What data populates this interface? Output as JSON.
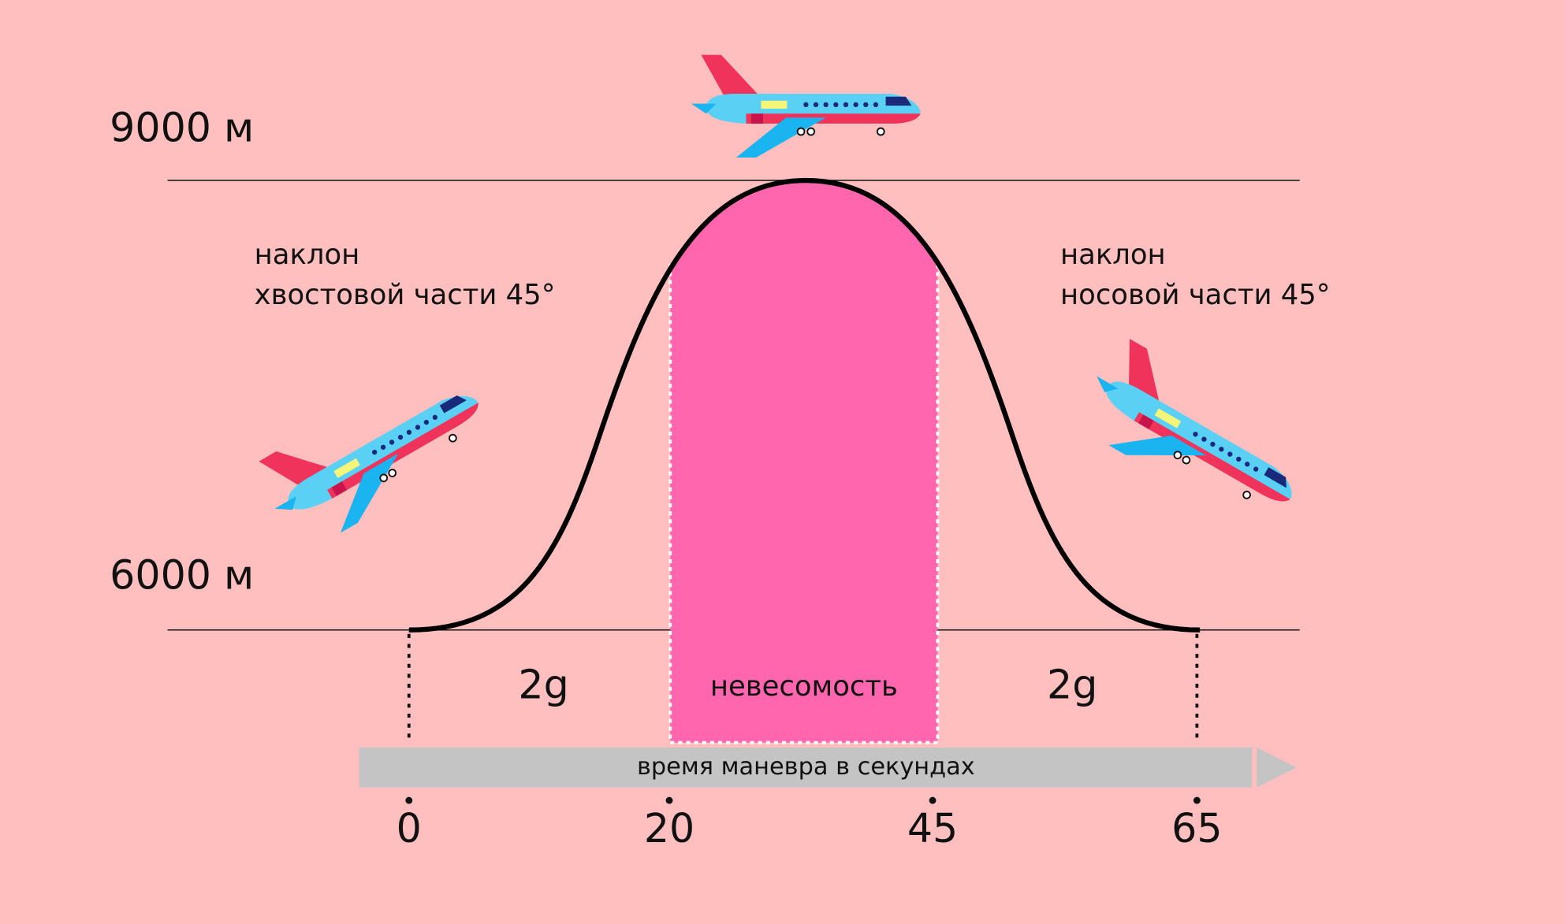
{
  "altitudes": {
    "top": "9000 м",
    "bottom": "6000 м"
  },
  "annotations": {
    "left": [
      "наклон",
      "хвостовой части 45°"
    ],
    "right": [
      "наклон",
      "носовой части 45°"
    ]
  },
  "phases": {
    "left": "2g",
    "middle": "невесомость",
    "right": "2g"
  },
  "timeline": {
    "label": "время маневра в секундах",
    "ticks": [
      "0",
      "20",
      "45",
      "65"
    ]
  }
}
